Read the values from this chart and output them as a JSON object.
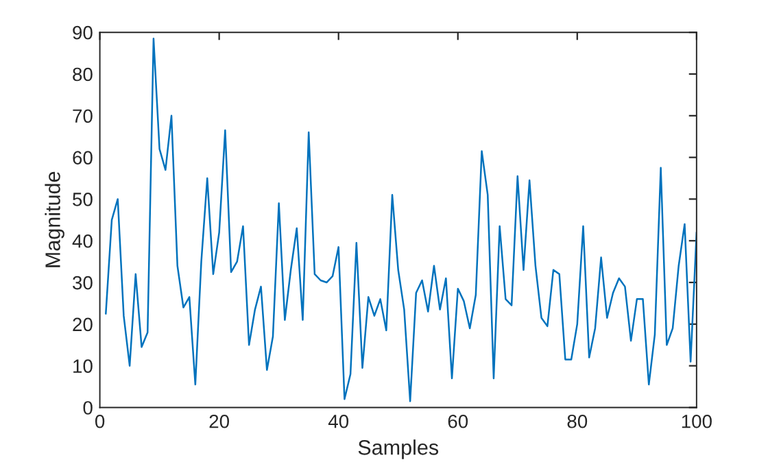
{
  "chart_data": {
    "type": "line",
    "xlabel": "Samples",
    "ylabel": "Magnitude",
    "x": [
      1,
      2,
      3,
      4,
      5,
      6,
      7,
      8,
      9,
      10,
      11,
      12,
      13,
      14,
      15,
      16,
      17,
      18,
      19,
      20,
      21,
      22,
      23,
      24,
      25,
      26,
      27,
      28,
      29,
      30,
      31,
      32,
      33,
      34,
      35,
      36,
      37,
      38,
      39,
      40,
      41,
      42,
      43,
      44,
      45,
      46,
      47,
      48,
      49,
      50,
      51,
      52,
      53,
      54,
      55,
      56,
      57,
      58,
      59,
      60,
      61,
      62,
      63,
      64,
      65,
      66,
      67,
      68,
      69,
      70,
      71,
      72,
      73,
      74,
      75,
      76,
      77,
      78,
      79,
      80,
      81,
      82,
      83,
      84,
      85,
      86,
      87,
      88,
      89,
      90,
      91,
      92,
      93,
      94,
      95,
      96,
      97,
      98,
      99,
      100
    ],
    "series": [
      {
        "color": "#0072bd",
        "values": [
          22.5,
          45,
          50,
          22,
          10,
          32,
          14.5,
          18,
          88.5,
          62,
          57,
          70,
          34,
          24,
          26.5,
          5.5,
          35,
          55,
          32,
          42,
          66.5,
          32.5,
          35,
          43.5,
          15,
          23.5,
          29,
          9,
          17,
          49,
          21,
          33,
          43,
          21,
          66,
          32,
          30.5,
          30,
          31.5,
          38.5,
          2,
          8,
          39.5,
          9.5,
          26.5,
          22,
          26,
          18.5,
          51,
          33,
          23.5,
          1.5,
          27.5,
          30.5,
          23,
          34,
          23.5,
          31,
          7,
          28.5,
          25.5,
          19,
          27,
          61.5,
          51,
          7,
          43.5,
          26,
          24.5,
          55.5,
          33,
          54.5,
          34,
          21.5,
          19.5,
          33,
          32,
          11.5,
          11.5,
          20,
          43.5,
          12,
          19,
          36,
          21.5,
          27.5,
          31,
          29,
          16,
          26,
          26,
          5.5,
          17.5,
          57.5,
          15,
          19,
          34,
          44,
          11,
          42
        ]
      }
    ],
    "xlim": [
      0,
      100
    ],
    "xticks": [
      0,
      20,
      40,
      60,
      80,
      100
    ],
    "ylim": [
      0,
      90
    ],
    "yticks": [
      0,
      10,
      20,
      30,
      40,
      50,
      60,
      70,
      80,
      90
    ],
    "grid": false,
    "legend": false,
    "marker": "none",
    "line_style": "solid"
  }
}
